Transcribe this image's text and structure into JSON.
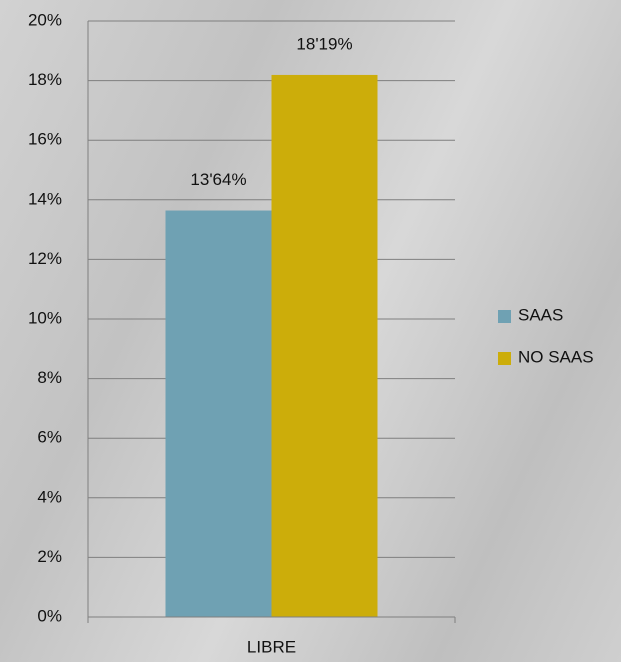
{
  "chart_data": {
    "type": "bar",
    "categories": [
      "LIBRE"
    ],
    "series": [
      {
        "name": "SAAS",
        "color": "#6fa1b3",
        "values": [
          13.64
        ],
        "value_labels": [
          "13'64%"
        ]
      },
      {
        "name": "NO SAAS",
        "color": "#ccad0a",
        "values": [
          18.19
        ],
        "value_labels": [
          "18'19%"
        ]
      }
    ],
    "ylim": [
      0,
      20
    ],
    "yticks": [
      {
        "value": 0,
        "label": "0%"
      },
      {
        "value": 2,
        "label": "2%"
      },
      {
        "value": 4,
        "label": "4%"
      },
      {
        "value": 6,
        "label": "6%"
      },
      {
        "value": 8,
        "label": "8%"
      },
      {
        "value": 10,
        "label": "10%"
      },
      {
        "value": 12,
        "label": "12%"
      },
      {
        "value": 14,
        "label": "14%"
      },
      {
        "value": 16,
        "label": "16%"
      },
      {
        "value": 18,
        "label": "18%"
      },
      {
        "value": 20,
        "label": "20%"
      }
    ],
    "grid": true,
    "legend": "right"
  }
}
